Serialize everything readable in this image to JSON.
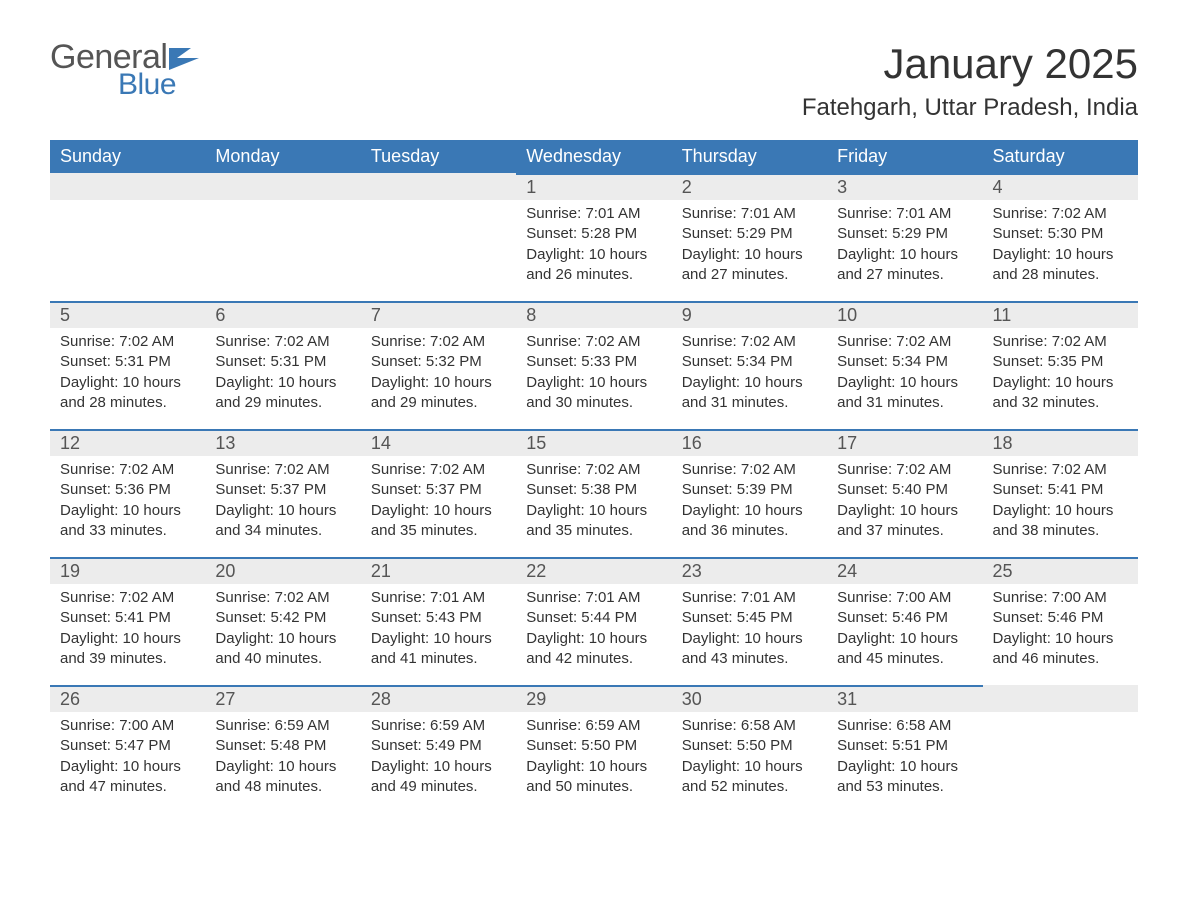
{
  "logo": {
    "general": "General",
    "blue": "Blue"
  },
  "title": "January 2025",
  "location": "Fatehgarh, Uttar Pradesh, India",
  "colors": {
    "header_bg": "#3a78b5",
    "header_text": "#ffffff",
    "daynum_bg": "#ececec",
    "daynum_border": "#3a78b5",
    "body_text": "#333333",
    "logo_gray": "#555555",
    "logo_blue": "#3a78b5",
    "page_bg": "#ffffff"
  },
  "fonts": {
    "title_size_pt": 32,
    "location_size_pt": 18,
    "th_size_pt": 14,
    "daynum_size_pt": 14,
    "body_size_pt": 11
  },
  "weekdays": [
    "Sunday",
    "Monday",
    "Tuesday",
    "Wednesday",
    "Thursday",
    "Friday",
    "Saturday"
  ],
  "weeks": [
    [
      {
        "blank": true
      },
      {
        "blank": true
      },
      {
        "blank": true
      },
      {
        "day": "1",
        "sunrise": "Sunrise: 7:01 AM",
        "sunset": "Sunset: 5:28 PM",
        "dl1": "Daylight: 10 hours",
        "dl2": "and 26 minutes."
      },
      {
        "day": "2",
        "sunrise": "Sunrise: 7:01 AM",
        "sunset": "Sunset: 5:29 PM",
        "dl1": "Daylight: 10 hours",
        "dl2": "and 27 minutes."
      },
      {
        "day": "3",
        "sunrise": "Sunrise: 7:01 AM",
        "sunset": "Sunset: 5:29 PM",
        "dl1": "Daylight: 10 hours",
        "dl2": "and 27 minutes."
      },
      {
        "day": "4",
        "sunrise": "Sunrise: 7:02 AM",
        "sunset": "Sunset: 5:30 PM",
        "dl1": "Daylight: 10 hours",
        "dl2": "and 28 minutes."
      }
    ],
    [
      {
        "day": "5",
        "sunrise": "Sunrise: 7:02 AM",
        "sunset": "Sunset: 5:31 PM",
        "dl1": "Daylight: 10 hours",
        "dl2": "and 28 minutes."
      },
      {
        "day": "6",
        "sunrise": "Sunrise: 7:02 AM",
        "sunset": "Sunset: 5:31 PM",
        "dl1": "Daylight: 10 hours",
        "dl2": "and 29 minutes."
      },
      {
        "day": "7",
        "sunrise": "Sunrise: 7:02 AM",
        "sunset": "Sunset: 5:32 PM",
        "dl1": "Daylight: 10 hours",
        "dl2": "and 29 minutes."
      },
      {
        "day": "8",
        "sunrise": "Sunrise: 7:02 AM",
        "sunset": "Sunset: 5:33 PM",
        "dl1": "Daylight: 10 hours",
        "dl2": "and 30 minutes."
      },
      {
        "day": "9",
        "sunrise": "Sunrise: 7:02 AM",
        "sunset": "Sunset: 5:34 PM",
        "dl1": "Daylight: 10 hours",
        "dl2": "and 31 minutes."
      },
      {
        "day": "10",
        "sunrise": "Sunrise: 7:02 AM",
        "sunset": "Sunset: 5:34 PM",
        "dl1": "Daylight: 10 hours",
        "dl2": "and 31 minutes."
      },
      {
        "day": "11",
        "sunrise": "Sunrise: 7:02 AM",
        "sunset": "Sunset: 5:35 PM",
        "dl1": "Daylight: 10 hours",
        "dl2": "and 32 minutes."
      }
    ],
    [
      {
        "day": "12",
        "sunrise": "Sunrise: 7:02 AM",
        "sunset": "Sunset: 5:36 PM",
        "dl1": "Daylight: 10 hours",
        "dl2": "and 33 minutes."
      },
      {
        "day": "13",
        "sunrise": "Sunrise: 7:02 AM",
        "sunset": "Sunset: 5:37 PM",
        "dl1": "Daylight: 10 hours",
        "dl2": "and 34 minutes."
      },
      {
        "day": "14",
        "sunrise": "Sunrise: 7:02 AM",
        "sunset": "Sunset: 5:37 PM",
        "dl1": "Daylight: 10 hours",
        "dl2": "and 35 minutes."
      },
      {
        "day": "15",
        "sunrise": "Sunrise: 7:02 AM",
        "sunset": "Sunset: 5:38 PM",
        "dl1": "Daylight: 10 hours",
        "dl2": "and 35 minutes."
      },
      {
        "day": "16",
        "sunrise": "Sunrise: 7:02 AM",
        "sunset": "Sunset: 5:39 PM",
        "dl1": "Daylight: 10 hours",
        "dl2": "and 36 minutes."
      },
      {
        "day": "17",
        "sunrise": "Sunrise: 7:02 AM",
        "sunset": "Sunset: 5:40 PM",
        "dl1": "Daylight: 10 hours",
        "dl2": "and 37 minutes."
      },
      {
        "day": "18",
        "sunrise": "Sunrise: 7:02 AM",
        "sunset": "Sunset: 5:41 PM",
        "dl1": "Daylight: 10 hours",
        "dl2": "and 38 minutes."
      }
    ],
    [
      {
        "day": "19",
        "sunrise": "Sunrise: 7:02 AM",
        "sunset": "Sunset: 5:41 PM",
        "dl1": "Daylight: 10 hours",
        "dl2": "and 39 minutes."
      },
      {
        "day": "20",
        "sunrise": "Sunrise: 7:02 AM",
        "sunset": "Sunset: 5:42 PM",
        "dl1": "Daylight: 10 hours",
        "dl2": "and 40 minutes."
      },
      {
        "day": "21",
        "sunrise": "Sunrise: 7:01 AM",
        "sunset": "Sunset: 5:43 PM",
        "dl1": "Daylight: 10 hours",
        "dl2": "and 41 minutes."
      },
      {
        "day": "22",
        "sunrise": "Sunrise: 7:01 AM",
        "sunset": "Sunset: 5:44 PM",
        "dl1": "Daylight: 10 hours",
        "dl2": "and 42 minutes."
      },
      {
        "day": "23",
        "sunrise": "Sunrise: 7:01 AM",
        "sunset": "Sunset: 5:45 PM",
        "dl1": "Daylight: 10 hours",
        "dl2": "and 43 minutes."
      },
      {
        "day": "24",
        "sunrise": "Sunrise: 7:00 AM",
        "sunset": "Sunset: 5:46 PM",
        "dl1": "Daylight: 10 hours",
        "dl2": "and 45 minutes."
      },
      {
        "day": "25",
        "sunrise": "Sunrise: 7:00 AM",
        "sunset": "Sunset: 5:46 PM",
        "dl1": "Daylight: 10 hours",
        "dl2": "and 46 minutes."
      }
    ],
    [
      {
        "day": "26",
        "sunrise": "Sunrise: 7:00 AM",
        "sunset": "Sunset: 5:47 PM",
        "dl1": "Daylight: 10 hours",
        "dl2": "and 47 minutes."
      },
      {
        "day": "27",
        "sunrise": "Sunrise: 6:59 AM",
        "sunset": "Sunset: 5:48 PM",
        "dl1": "Daylight: 10 hours",
        "dl2": "and 48 minutes."
      },
      {
        "day": "28",
        "sunrise": "Sunrise: 6:59 AM",
        "sunset": "Sunset: 5:49 PM",
        "dl1": "Daylight: 10 hours",
        "dl2": "and 49 minutes."
      },
      {
        "day": "29",
        "sunrise": "Sunrise: 6:59 AM",
        "sunset": "Sunset: 5:50 PM",
        "dl1": "Daylight: 10 hours",
        "dl2": "and 50 minutes."
      },
      {
        "day": "30",
        "sunrise": "Sunrise: 6:58 AM",
        "sunset": "Sunset: 5:50 PM",
        "dl1": "Daylight: 10 hours",
        "dl2": "and 52 minutes."
      },
      {
        "day": "31",
        "sunrise": "Sunrise: 6:58 AM",
        "sunset": "Sunset: 5:51 PM",
        "dl1": "Daylight: 10 hours",
        "dl2": "and 53 minutes."
      },
      {
        "blank": true
      }
    ]
  ]
}
